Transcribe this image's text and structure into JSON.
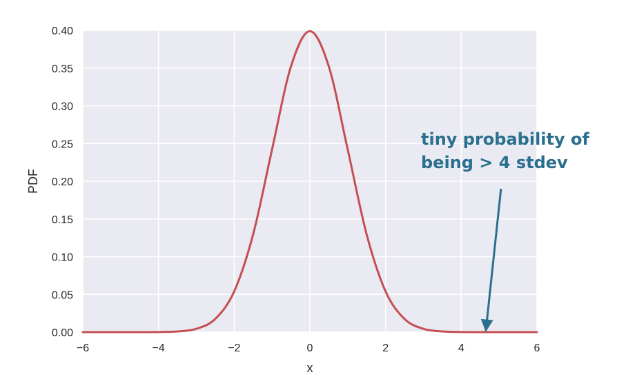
{
  "chart_data": {
    "type": "line",
    "title": "",
    "xlabel": "x",
    "ylabel": "PDF",
    "xlim": [
      -6,
      6
    ],
    "ylim": [
      0,
      0.4
    ],
    "grid": true,
    "background_color": "#EAEAF2",
    "x_ticks": [
      -6,
      -4,
      -2,
      0,
      2,
      4,
      6
    ],
    "x_tick_labels": [
      "−6",
      "−4",
      "−2",
      "0",
      "2",
      "4",
      "6"
    ],
    "y_ticks": [
      0.0,
      0.05,
      0.1,
      0.15,
      0.2,
      0.25,
      0.3,
      0.35,
      0.4
    ],
    "y_tick_labels": [
      "0.00",
      "0.05",
      "0.10",
      "0.15",
      "0.20",
      "0.25",
      "0.30",
      "0.35",
      "0.40"
    ],
    "series": [
      {
        "color": "#C44E52",
        "x": [
          -6,
          -5.5,
          -5,
          -4.5,
          -4,
          -3.5,
          -3,
          -2.5,
          -2,
          -1.5,
          -1,
          -0.5,
          0,
          0.5,
          1,
          1.5,
          2,
          2.5,
          3,
          3.5,
          4,
          4.5,
          5,
          5.5,
          6
        ],
        "y": [
          0.0,
          0.0,
          0.0,
          0.0,
          0.0001,
          0.0009,
          0.0044,
          0.0175,
          0.054,
          0.1295,
          0.242,
          0.3521,
          0.3989,
          0.3521,
          0.242,
          0.1295,
          0.054,
          0.0175,
          0.0044,
          0.0009,
          0.0001,
          0.0,
          0.0,
          0.0,
          0.0
        ]
      }
    ],
    "annotations": [
      {
        "lines": [
          "tiny probability of",
          "being > 4 stdev"
        ],
        "color": "#2A6F8E",
        "arrow_from": [
          5.05,
          0.19
        ],
        "arrow_to": [
          4.65,
          0.002
        ]
      }
    ]
  }
}
